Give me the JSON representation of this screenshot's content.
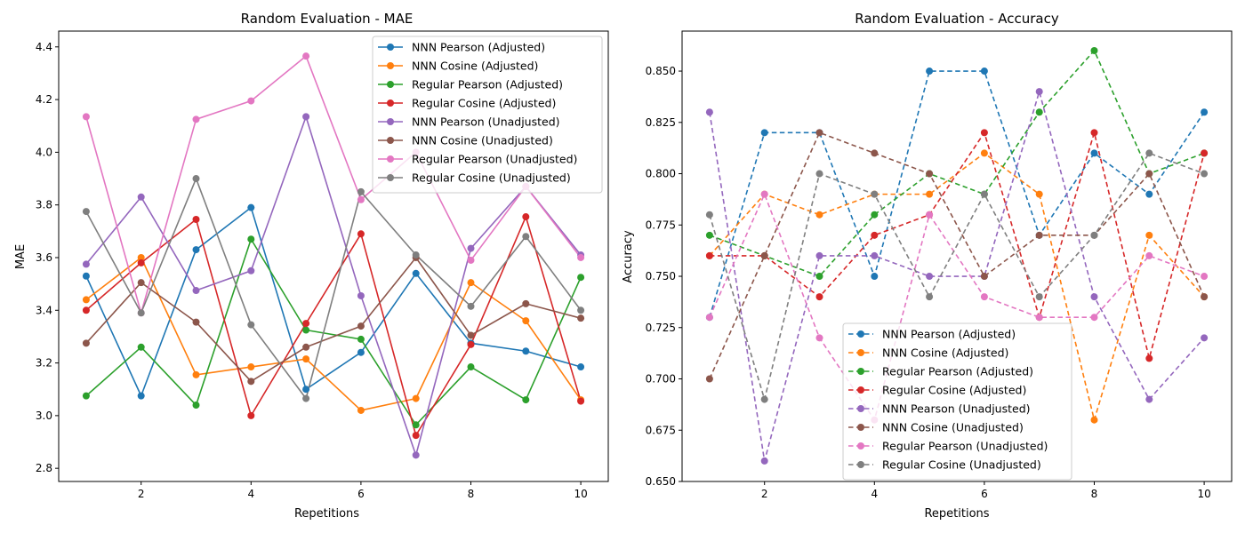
{
  "chart_data": [
    {
      "type": "line",
      "title": "Random Evaluation - MAE",
      "xlabel": "Repetitions",
      "ylabel": "MAE",
      "xlim": [
        0.5,
        10.5
      ],
      "ylim": [
        2.75,
        4.46
      ],
      "xticks": [
        2,
        4,
        6,
        8,
        10
      ],
      "yticks": [
        2.8,
        3.0,
        3.2,
        3.4,
        3.6,
        3.8,
        4.0,
        4.2,
        4.4
      ],
      "ytick_labels": [
        "2.8",
        "3.0",
        "3.2",
        "3.4",
        "3.6",
        "3.8",
        "4.0",
        "4.2",
        "4.4"
      ],
      "line_style": "solid",
      "legend_position": "upper-right",
      "grid": false,
      "x": [
        1,
        2,
        3,
        4,
        5,
        6,
        7,
        8,
        9,
        10
      ],
      "series": [
        {
          "name": "NNN Pearson (Adjusted)",
          "color": "#1f77b4",
          "values": [
            3.53,
            3.075,
            3.63,
            3.79,
            3.1,
            3.24,
            3.54,
            3.275,
            3.245,
            3.185
          ]
        },
        {
          "name": "NNN Cosine (Adjusted)",
          "color": "#ff7f0e",
          "values": [
            3.44,
            3.6,
            3.155,
            3.185,
            3.215,
            3.02,
            3.065,
            3.505,
            3.36,
            3.06
          ]
        },
        {
          "name": "Regular Pearson (Adjusted)",
          "color": "#2ca02c",
          "values": [
            3.075,
            3.26,
            3.04,
            3.67,
            3.325,
            3.29,
            2.965,
            3.185,
            3.06,
            3.525
          ]
        },
        {
          "name": "Regular Cosine (Adjusted)",
          "color": "#d62728",
          "values": [
            3.4,
            3.58,
            3.745,
            3.0,
            3.35,
            3.69,
            2.925,
            3.27,
            3.755,
            3.055
          ]
        },
        {
          "name": "NNN Pearson (Unadjusted)",
          "color": "#9467bd",
          "values": [
            3.575,
            3.83,
            3.475,
            3.55,
            4.135,
            3.455,
            2.85,
            3.635,
            3.87,
            3.61
          ]
        },
        {
          "name": "NNN Cosine (Unadjusted)",
          "color": "#8c564b",
          "values": [
            3.275,
            3.505,
            3.355,
            3.13,
            3.26,
            3.34,
            3.6,
            3.305,
            3.425,
            3.37
          ]
        },
        {
          "name": "Regular Pearson (Unadjusted)",
          "color": "#e377c2",
          "values": [
            4.135,
            3.39,
            4.125,
            4.195,
            4.365,
            3.82,
            4.0,
            3.59,
            3.87,
            3.6
          ]
        },
        {
          "name": "Regular Cosine (Unadjusted)",
          "color": "#7f7f7f",
          "values": [
            3.775,
            3.39,
            3.9,
            3.345,
            3.065,
            3.85,
            3.61,
            3.415,
            3.68,
            3.4
          ]
        }
      ]
    },
    {
      "type": "line",
      "title": "Random Evaluation - Accuracy",
      "xlabel": "Repetitions",
      "ylabel": "Accuracy",
      "xlim": [
        0.5,
        10.5
      ],
      "ylim": [
        0.65,
        0.8695
      ],
      "xticks": [
        2,
        4,
        6,
        8,
        10
      ],
      "yticks": [
        0.65,
        0.675,
        0.7,
        0.725,
        0.75,
        0.775,
        0.8,
        0.825,
        0.85
      ],
      "ytick_labels": [
        "0.650",
        "0.675",
        "0.700",
        "0.725",
        "0.750",
        "0.775",
        "0.800",
        "0.825",
        "0.850"
      ],
      "line_style": "dashed",
      "legend_position": "lower-center",
      "grid": false,
      "x": [
        1,
        2,
        3,
        4,
        5,
        6,
        7,
        8,
        9,
        10
      ],
      "series": [
        {
          "name": "NNN Pearson (Adjusted)",
          "color": "#1f77b4",
          "values": [
            0.73,
            0.82,
            0.82,
            0.75,
            0.85,
            0.85,
            0.77,
            0.81,
            0.79,
            0.83
          ]
        },
        {
          "name": "NNN Cosine (Adjusted)",
          "color": "#ff7f0e",
          "values": [
            0.76,
            0.79,
            0.78,
            0.79,
            0.79,
            0.81,
            0.79,
            0.68,
            0.77,
            0.74
          ]
        },
        {
          "name": "Regular Pearson (Adjusted)",
          "color": "#2ca02c",
          "values": [
            0.77,
            0.76,
            0.75,
            0.78,
            0.8,
            0.79,
            0.83,
            0.86,
            0.8,
            0.81
          ]
        },
        {
          "name": "Regular Cosine (Adjusted)",
          "color": "#d62728",
          "values": [
            0.76,
            0.76,
            0.74,
            0.77,
            0.78,
            0.82,
            0.73,
            0.82,
            0.71,
            0.81
          ]
        },
        {
          "name": "NNN Pearson (Unadjusted)",
          "color": "#9467bd",
          "values": [
            0.83,
            0.66,
            0.76,
            0.76,
            0.75,
            0.75,
            0.84,
            0.74,
            0.69,
            0.72
          ]
        },
        {
          "name": "NNN Cosine (Unadjusted)",
          "color": "#8c564b",
          "values": [
            0.7,
            0.76,
            0.82,
            0.81,
            0.8,
            0.75,
            0.77,
            0.77,
            0.8,
            0.74
          ]
        },
        {
          "name": "Regular Pearson (Unadjusted)",
          "color": "#e377c2",
          "values": [
            0.73,
            0.79,
            0.72,
            0.68,
            0.78,
            0.74,
            0.73,
            0.73,
            0.76,
            0.75
          ]
        },
        {
          "name": "Regular Cosine (Unadjusted)",
          "color": "#7f7f7f",
          "values": [
            0.78,
            0.69,
            0.8,
            0.79,
            0.74,
            0.79,
            0.74,
            0.77,
            0.81,
            0.8
          ]
        }
      ]
    }
  ]
}
